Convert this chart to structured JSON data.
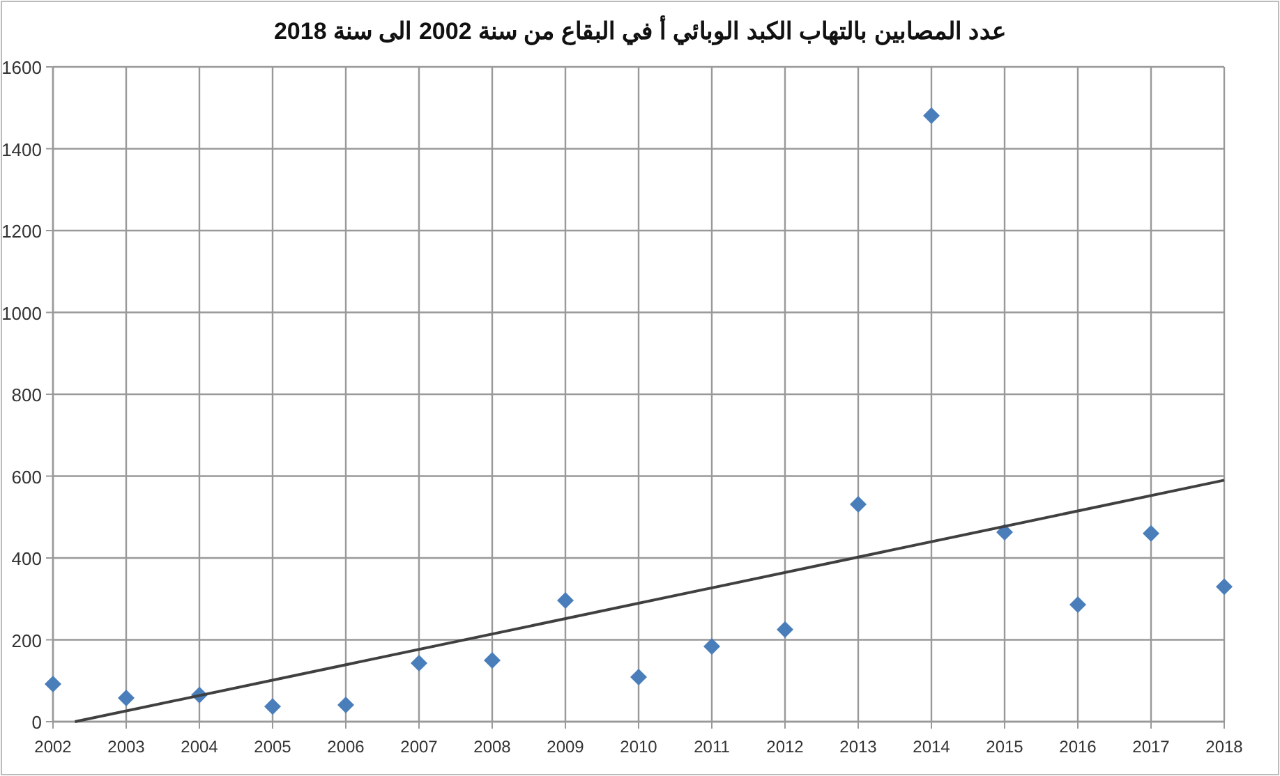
{
  "chart_data": {
    "type": "scatter",
    "title": "عدد المصابين بالتهاب الكبد الوبائي أ في البقاع من سنة 2002 الى سنة 2018",
    "xlim": [
      2002,
      2018
    ],
    "xticks": [
      2002,
      2003,
      2004,
      2005,
      2006,
      2007,
      2008,
      2009,
      2010,
      2011,
      2012,
      2013,
      2014,
      2015,
      2016,
      2017,
      2018
    ],
    "ylim": [
      0,
      1600
    ],
    "yticks": [
      0,
      200,
      400,
      600,
      800,
      1000,
      1200,
      1400,
      1600
    ],
    "grid": true,
    "marker": "diamond",
    "series": [
      {
        "color": "#4a7ebb",
        "x": [
          2002,
          2003,
          2004,
          2005,
          2006,
          2007,
          2008,
          2009,
          2010,
          2011,
          2012,
          2013,
          2014,
          2015,
          2016,
          2017,
          2018
        ],
        "values": [
          92,
          58,
          65,
          37,
          41,
          143,
          150,
          296,
          109,
          184,
          225,
          531,
          1481,
          463,
          286,
          460,
          330
        ]
      },
      {
        "type": "line",
        "color": "#404040",
        "marker": "none",
        "line_style": "solid",
        "x": [
          2002.3,
          2018
        ],
        "values": [
          0,
          590
        ]
      }
    ]
  }
}
